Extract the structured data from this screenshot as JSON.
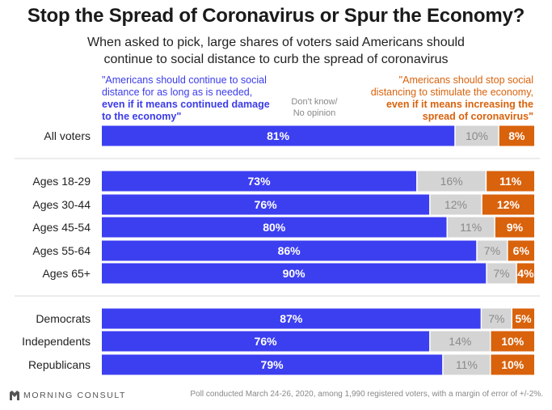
{
  "title": "Stop the Spread of Coronavirus or Spur the Economy?",
  "subtitle_line1": "When asked to pick, large shares of voters said Americans should",
  "subtitle_line2": "continue to social distance to curb the spread of coronavirus",
  "legend": {
    "left_regular": "\"Americans should continue to social distance for as long as is needed, ",
    "left_bold": "even if it means continued damage to the economy\"",
    "middle_line1": "Don't know/",
    "middle_line2": "No opinion",
    "right_regular": "\"Americans should stop social distancing to stimulate the economy, ",
    "right_bold": "even if it means increasing the spread of coronavirus\""
  },
  "colors": {
    "distance": "#3c3ff0",
    "dontknow": "#d4d4d4",
    "stop": "#d9620c"
  },
  "chart_data": {
    "type": "bar",
    "orientation": "horizontal",
    "stacked": true,
    "title": "Stop the Spread of Coronavirus or Spur the Economy?",
    "categories": [
      "All voters",
      "Ages 18-29",
      "Ages 30-44",
      "Ages 45-54",
      "Ages 55-64",
      "Ages 65+",
      "Democrats",
      "Independents",
      "Republicans"
    ],
    "groups": [
      [
        0
      ],
      [
        1,
        2,
        3,
        4,
        5
      ],
      [
        6,
        7,
        8
      ]
    ],
    "series": [
      {
        "name": "Americans should continue to social distance for as long as is needed, even if it means continued damage to the economy",
        "values": [
          81,
          73,
          76,
          80,
          86,
          90,
          87,
          76,
          79
        ]
      },
      {
        "name": "Don't know/No opinion",
        "values": [
          10,
          16,
          12,
          11,
          7,
          7,
          7,
          14,
          11
        ]
      },
      {
        "name": "Americans should stop social distancing to stimulate the economy, even if it means increasing the spread of coronavirus",
        "values": [
          8,
          11,
          12,
          9,
          6,
          4,
          5,
          10,
          10
        ]
      }
    ],
    "value_suffix": "%",
    "xlim": [
      0,
      100
    ]
  },
  "footer": {
    "brand": "MORNING CONSULT",
    "note": "Poll conducted March 24-26, 2020, among 1,990 registered voters, with a margin of error of +/-2%."
  }
}
